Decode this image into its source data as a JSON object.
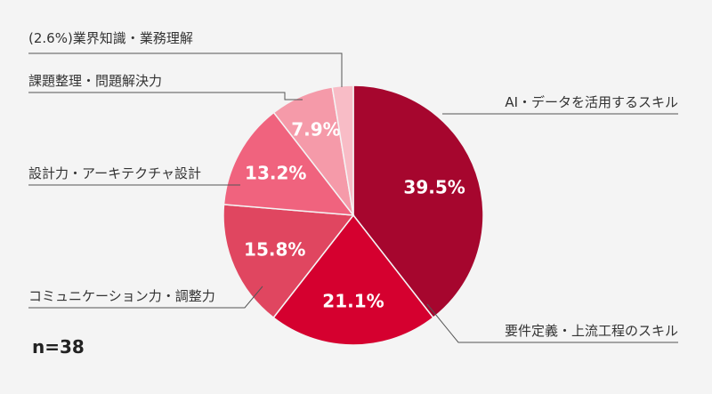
{
  "chart_data": {
    "type": "pie",
    "title": "",
    "sample_note": "n=38",
    "start": "12 o'clock, clockwise",
    "slices": [
      {
        "label": "AI・データを活用するスキル",
        "value": 39.5,
        "display": "39.5%",
        "color": "#a6062e"
      },
      {
        "label": "要件定義・上流工程のスキル",
        "value": 21.1,
        "display": "21.1%",
        "color": "#d5002f"
      },
      {
        "label": "コミュニケーション力・調整力",
        "value": 15.8,
        "display": "15.8%",
        "color": "#e04660"
      },
      {
        "label": "設計力・アーキテクチャ設計",
        "value": 13.2,
        "display": "13.2%",
        "color": "#f0637e"
      },
      {
        "label": "課題整理・問題解決力",
        "value": 7.9,
        "display": "7.9%",
        "color": "#f59aa9"
      },
      {
        "label": "(2.6%)業界知識・業務理解",
        "value": 2.6,
        "display": "",
        "color": "#f8bcc6"
      }
    ]
  }
}
